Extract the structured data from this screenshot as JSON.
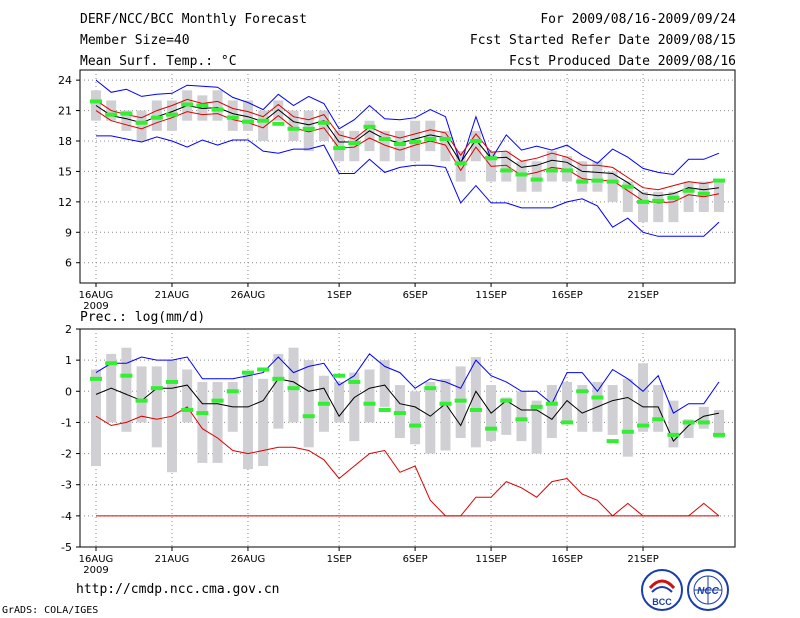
{
  "header": {
    "left": [
      "DERF/NCC/BCC Monthly Forecast",
      "Member Size=40",
      "Mean Surf. Temp.: °C"
    ],
    "right": [
      "For 2009/08/16-2009/09/24",
      "Fcst Started Refer Date 2009/08/15",
      "Fcst Produced Date 2009/08/16"
    ]
  },
  "footer": {
    "url": "http://cmdp.ncc.cma.gov.cn",
    "grads": "GrADS: COLA/IGES",
    "logo_left": "BCC",
    "logo_right": "NCC"
  },
  "colors": {
    "blue": "#0000ff",
    "red": "#dd0000",
    "green": "#33ee33",
    "gray": "#d0d0d4",
    "black": "#000000"
  },
  "chart_data": [
    {
      "type": "line",
      "title": "Mean Surf. Temp.: °C",
      "ylim": [
        4,
        25
      ],
      "yticks": [
        6,
        9,
        12,
        15,
        18,
        21,
        24
      ],
      "xticks": [
        {
          "day": 0,
          "label": "16AUG"
        },
        {
          "day": 5,
          "label": "21AUG"
        },
        {
          "day": 10,
          "label": "26AUG"
        },
        {
          "day": 16,
          "label": "1SEP"
        },
        {
          "day": 21,
          "label": "6SEP"
        },
        {
          "day": 26,
          "label": "11SEP"
        },
        {
          "day": 31,
          "label": "16SEP"
        },
        {
          "day": 36,
          "label": "21SEP"
        }
      ],
      "year_label": "2009",
      "series": [
        {
          "name": "max",
          "color": "blue",
          "values": [
            24,
            22.8,
            23.1,
            22.4,
            22.6,
            22.7,
            23.5,
            23.4,
            23.3,
            22.3,
            21.8,
            21.1,
            22.6,
            21.5,
            22.4,
            21.7,
            19.2,
            20.1,
            21.5,
            20.2,
            20.1,
            20.3,
            21.1,
            20.4,
            15.7,
            20.4,
            16.2,
            18.6,
            17.1,
            17.5,
            17.1,
            17.6,
            16.6,
            15.8,
            17.2,
            16.4,
            15.3,
            14.9,
            14.7,
            16.2,
            16.2,
            16.8
          ]
        },
        {
          "name": "upper",
          "color": "red",
          "values": [
            22.0,
            21.0,
            20.6,
            20.3,
            21.0,
            21.5,
            22.1,
            21.7,
            21.9,
            21.2,
            20.9,
            20.4,
            21.6,
            20.4,
            20.1,
            20.6,
            18.6,
            18.2,
            19.4,
            18.7,
            18.3,
            18.7,
            19.1,
            18.8,
            16.6,
            18.7,
            16.9,
            17.0,
            16.0,
            16.3,
            16.8,
            16.4,
            15.6,
            15.6,
            15.4,
            14.4,
            13.4,
            13.2,
            13.6,
            14.0,
            13.8,
            14.1
          ]
        },
        {
          "name": "mean",
          "color": "black",
          "values": [
            21.5,
            20.5,
            20.2,
            19.8,
            20.4,
            20.9,
            21.5,
            21.2,
            21.3,
            20.7,
            20.4,
            19.9,
            21.1,
            19.9,
            19.6,
            20.0,
            17.9,
            17.9,
            19.0,
            18.2,
            17.8,
            18.2,
            18.6,
            18.3,
            15.9,
            18.1,
            16.3,
            16.4,
            15.4,
            15.6,
            16.1,
            15.9,
            15.0,
            14.9,
            14.8,
            13.9,
            12.8,
            12.6,
            12.8,
            13.4,
            13.2,
            13.4
          ]
        },
        {
          "name": "lower",
          "color": "red",
          "values": [
            21.0,
            20.0,
            19.6,
            19.2,
            19.8,
            20.3,
            20.9,
            20.6,
            20.7,
            20.1,
            19.8,
            19.3,
            20.5,
            19.3,
            18.9,
            19.3,
            17.3,
            17.4,
            18.3,
            17.6,
            17.1,
            17.6,
            18.0,
            17.6,
            15.1,
            17.4,
            15.5,
            15.6,
            14.6,
            14.9,
            15.4,
            15.2,
            14.3,
            14.1,
            14.1,
            13.1,
            12.1,
            11.9,
            12.0,
            12.7,
            12.5,
            12.8
          ]
        },
        {
          "name": "min",
          "color": "blue",
          "values": [
            18.5,
            18.5,
            18.2,
            17.9,
            18.4,
            18.0,
            17.4,
            18.1,
            17.6,
            18.1,
            18.1,
            17.0,
            16.8,
            17.2,
            17.2,
            17.6,
            14.8,
            14.8,
            16.2,
            14.9,
            15.4,
            15.6,
            15.6,
            15.4,
            11.9,
            13.6,
            11.9,
            11.9,
            11.4,
            11.4,
            11.4,
            12.0,
            12.3,
            11.6,
            9.5,
            10.4,
            9.0,
            8.6,
            8.6,
            8.6,
            8.6,
            10.0
          ]
        }
      ],
      "box_ranges": [
        [
          20,
          23
        ],
        [
          20,
          22
        ],
        [
          19,
          21
        ],
        [
          18,
          21
        ],
        [
          19,
          22
        ],
        [
          19,
          22
        ],
        [
          20,
          23
        ],
        [
          20,
          22.5
        ],
        [
          20,
          23
        ],
        [
          19,
          22
        ],
        [
          19,
          22
        ],
        [
          18,
          21
        ],
        [
          20,
          22
        ],
        [
          18,
          21
        ],
        [
          17,
          21
        ],
        [
          18,
          21
        ],
        [
          16,
          19
        ],
        [
          16,
          19
        ],
        [
          17,
          20
        ],
        [
          16,
          19
        ],
        [
          16,
          19
        ],
        [
          16,
          20
        ],
        [
          17,
          20
        ],
        [
          16,
          19
        ],
        [
          14,
          17
        ],
        [
          16,
          19
        ],
        [
          14,
          17
        ],
        [
          14,
          17
        ],
        [
          13,
          16
        ],
        [
          13,
          16
        ],
        [
          14,
          17
        ],
        [
          14,
          16.5
        ],
        [
          13,
          16
        ],
        [
          13,
          16
        ],
        [
          12,
          15
        ],
        [
          11,
          14
        ],
        [
          10,
          13
        ],
        [
          10,
          13
        ],
        [
          10,
          13
        ],
        [
          11,
          14
        ],
        [
          11,
          14
        ],
        [
          11,
          14
        ]
      ],
      "green_marks": [
        21.9,
        20.6,
        20.7,
        19.8,
        20.3,
        20.6,
        21.6,
        21.5,
        21.1,
        20.3,
        19.9,
        20.0,
        19.7,
        19.2,
        19.2,
        19.8,
        17.3,
        17.8,
        19.4,
        18.2,
        17.7,
        17.9,
        18.2,
        18.2,
        15.8,
        18.0,
        16.3,
        15.1,
        14.7,
        14.2,
        15.1,
        15.1,
        14.0,
        14.1,
        14.0,
        13.5,
        12.0,
        12.1,
        12.4,
        13.1,
        12.8,
        14.1
      ]
    },
    {
      "type": "line",
      "title": "Prec.: log(mm/d)",
      "ylim": [
        -5,
        2
      ],
      "yticks": [
        -5,
        -4,
        -3,
        -2,
        -1,
        0,
        1,
        2
      ],
      "xticks": [
        {
          "day": 0,
          "label": "16AUG"
        },
        {
          "day": 5,
          "label": "21AUG"
        },
        {
          "day": 10,
          "label": "26AUG"
        },
        {
          "day": 16,
          "label": "1SEP"
        },
        {
          "day": 21,
          "label": "6SEP"
        },
        {
          "day": 26,
          "label": "11SEP"
        },
        {
          "day": 31,
          "label": "16SEP"
        },
        {
          "day": 36,
          "label": "21SEP"
        }
      ],
      "year_label": "2009",
      "series": [
        {
          "name": "max",
          "color": "blue",
          "values": [
            0.6,
            0.9,
            0.9,
            1.1,
            1.0,
            1.0,
            1.1,
            0.4,
            0.4,
            0.4,
            0.5,
            0.6,
            1.1,
            0.6,
            0.8,
            0.9,
            0.2,
            0.5,
            1.2,
            0.8,
            0.6,
            0.1,
            0.4,
            0.3,
            0.1,
            1.0,
            0.5,
            0.3,
            0.0,
            0.0,
            -0.4,
            0.6,
            0.6,
            0.0,
            0.7,
            0.4,
            0.0,
            0.5,
            -0.7,
            -0.4,
            -0.4,
            0.3
          ]
        },
        {
          "name": "mean",
          "color": "black",
          "values": [
            -0.1,
            0.1,
            -0.1,
            -0.3,
            0.1,
            0.1,
            0.2,
            -0.4,
            -0.4,
            -0.5,
            -0.5,
            -0.3,
            0.4,
            0.3,
            0.0,
            0.1,
            -0.8,
            -0.2,
            0.1,
            0.2,
            -0.4,
            -0.5,
            -0.8,
            -0.4,
            -1.1,
            0.0,
            -0.7,
            -0.3,
            -0.6,
            -0.6,
            -0.9,
            -0.3,
            -0.7,
            -0.5,
            -0.3,
            -0.2,
            -0.5,
            -0.5,
            -1.6,
            -1.1,
            -0.8,
            -0.7
          ]
        },
        {
          "name": "lower",
          "color": "red",
          "values": [
            -0.8,
            -1.1,
            -1.0,
            -0.8,
            -0.9,
            -0.8,
            -0.5,
            -1.2,
            -1.5,
            -1.9,
            -2.0,
            -1.9,
            -1.8,
            -1.8,
            -1.9,
            -2.2,
            -2.8,
            -2.4,
            -2.0,
            -1.9,
            -2.6,
            -2.4,
            -3.5,
            -4.0,
            -4.0,
            -3.4,
            -3.4,
            -2.9,
            -3.1,
            -3.4,
            -2.9,
            -2.8,
            -3.3,
            -3.5,
            -4.0,
            -3.6,
            -4.0,
            -4.0,
            -4.0,
            -4.0,
            -3.6,
            -4.0
          ]
        },
        {
          "name": "min",
          "color": "red",
          "values": [
            -4,
            -4,
            -4,
            -4,
            -4,
            -4,
            -4,
            -4,
            -4,
            -4,
            -4,
            -4,
            -4,
            -4,
            -4,
            -4,
            -4,
            -4,
            -4,
            -4,
            -4,
            -4,
            -4,
            -4,
            -4,
            -4,
            -4,
            -4,
            -4,
            -4,
            -4,
            -4,
            -4,
            -4,
            -4,
            -4,
            -4,
            -4,
            -4,
            -4,
            -4,
            -4
          ]
        }
      ],
      "box_ranges": [
        [
          -2.4,
          0.7
        ],
        [
          -1.0,
          1.2
        ],
        [
          -1.3,
          1.4
        ],
        [
          -1.0,
          0.8
        ],
        [
          -1.8,
          0.8
        ],
        [
          -2.6,
          1.0
        ],
        [
          -1.0,
          0.7
        ],
        [
          -2.3,
          0.3
        ],
        [
          -2.3,
          0.3
        ],
        [
          -1.3,
          0.3
        ],
        [
          -2.5,
          0.6
        ],
        [
          -2.4,
          0.4
        ],
        [
          -1.2,
          1.2
        ],
        [
          -1.0,
          1.4
        ],
        [
          -1.8,
          1.0
        ],
        [
          -1.3,
          0.5
        ],
        [
          -1.0,
          0.3
        ],
        [
          -1.6,
          0.6
        ],
        [
          -1.0,
          0.7
        ],
        [
          -0.5,
          1.0
        ],
        [
          -1.5,
          0.2
        ],
        [
          -1.7,
          0.0
        ],
        [
          -2.0,
          0.3
        ],
        [
          -1.9,
          0.4
        ],
        [
          -1.5,
          0.8
        ],
        [
          -1.8,
          1.1
        ],
        [
          -1.6,
          0.2
        ],
        [
          -1.4,
          -0.2
        ],
        [
          -1.6,
          0.0
        ],
        [
          -2.0,
          -0.3
        ],
        [
          -1.5,
          0.2
        ],
        [
          -1.0,
          0.3
        ],
        [
          -1.3,
          0.2
        ],
        [
          -1.3,
          0.3
        ],
        [
          -1.4,
          0.2
        ],
        [
          -2.1,
          0.4
        ],
        [
          -1.3,
          0.9
        ],
        [
          -1.3,
          0.2
        ],
        [
          -1.8,
          -0.3
        ],
        [
          -1.5,
          -0.9
        ],
        [
          -1.2,
          -0.5
        ],
        [
          -1.5,
          -0.6
        ]
      ],
      "green_marks": [
        0.4,
        0.9,
        0.5,
        -0.3,
        0.1,
        0.3,
        -0.6,
        -0.7,
        -0.3,
        0.0,
        0.6,
        0.7,
        0.4,
        0.1,
        -0.8,
        -0.4,
        0.5,
        0.3,
        -0.4,
        -0.6,
        -0.7,
        -1.1,
        0.1,
        -0.4,
        -0.3,
        -0.6,
        -1.2,
        -0.3,
        -0.9,
        -0.5,
        -0.4,
        -1.0,
        0.0,
        -0.2,
        -1.6,
        -1.3,
        -1.1,
        -0.9,
        -1.4,
        -1.0,
        -1.0,
        -1.4
      ]
    }
  ]
}
